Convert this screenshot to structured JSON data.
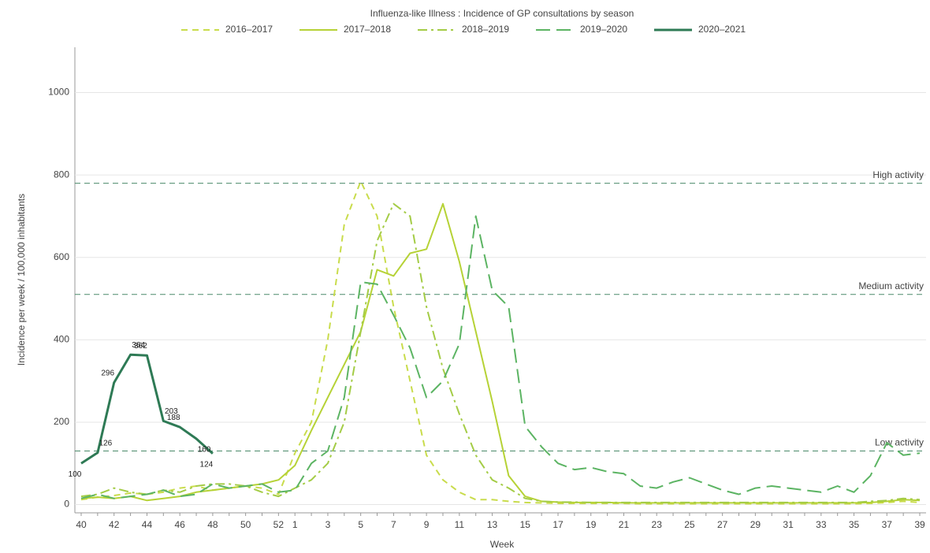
{
  "chart_data": {
    "type": "line",
    "title": "Influenza-like Illness : Incidence of GP consultations by season",
    "y_label": "Incidence per week / 100,000 inhabitants",
    "x_label": "Week",
    "categories": [
      "40",
      null,
      "42",
      null,
      "44",
      null,
      "46",
      null,
      "48",
      null,
      "50",
      null,
      "52",
      "1",
      null,
      "3",
      null,
      "5",
      null,
      "7",
      null,
      "9",
      null,
      "11",
      null,
      "13",
      null,
      "15",
      null,
      "17",
      null,
      "19",
      null,
      "21",
      null,
      "23",
      null,
      "25",
      null,
      "27",
      null,
      "29",
      null,
      "31",
      null,
      "33",
      null,
      "35",
      null,
      "37",
      null,
      "39"
    ],
    "ylim": [
      -20,
      1110
    ],
    "yticks": [
      0,
      200,
      400,
      600,
      800,
      1000
    ],
    "grid": true,
    "legend": "top",
    "thresholds": [
      {
        "label": "High activity",
        "value": 780
      },
      {
        "label": "Medium activity",
        "value": 510
      },
      {
        "label": "Low activity",
        "value": 130
      }
    ],
    "threshold_color": "#4a8a6a",
    "series": [
      {
        "name": "2016–2017",
        "color": "#c9dc4c",
        "dash": "dashed",
        "values": [
          12,
          18,
          22,
          28,
          25,
          30,
          40,
          45,
          35,
          40,
          45,
          40,
          25,
          125,
          200,
          400,
          680,
          785,
          700,
          480,
          300,
          120,
          60,
          30,
          12,
          12,
          8,
          5,
          4,
          3,
          3,
          3,
          3,
          3,
          2,
          2,
          2,
          2,
          2,
          2,
          2,
          2,
          2,
          2,
          2,
          2,
          2,
          2,
          3,
          5,
          8,
          5
        ]
      },
      {
        "name": "2017–2018",
        "color": "#b6d236",
        "dash": "solid",
        "values": [
          15,
          18,
          15,
          20,
          10,
          15,
          20,
          30,
          35,
          40,
          45,
          50,
          60,
          95,
          180,
          260,
          340,
          420,
          570,
          555,
          610,
          620,
          730,
          590,
          420,
          250,
          70,
          20,
          8,
          6,
          5,
          5,
          5,
          4,
          4,
          4,
          4,
          4,
          4,
          4,
          4,
          4,
          4,
          4,
          4,
          4,
          4,
          4,
          5,
          8,
          12,
          10
        ]
      },
      {
        "name": "2018–2019",
        "color": "#a4cc46",
        "dash": "dashdot",
        "values": [
          20,
          25,
          40,
          30,
          25,
          35,
          30,
          45,
          50,
          50,
          45,
          30,
          20,
          40,
          60,
          100,
          200,
          420,
          640,
          730,
          700,
          480,
          330,
          220,
          120,
          60,
          40,
          15,
          8,
          6,
          6,
          5,
          5,
          5,
          5,
          5,
          5,
          5,
          5,
          5,
          5,
          5,
          5,
          5,
          5,
          5,
          5,
          5,
          8,
          10,
          15,
          12
        ]
      },
      {
        "name": "2019–2020",
        "color": "#5cb463",
        "dash": "longdash",
        "values": [
          15,
          25,
          15,
          20,
          25,
          35,
          20,
          25,
          50,
          40,
          45,
          50,
          30,
          35,
          100,
          130,
          260,
          540,
          535,
          460,
          380,
          260,
          300,
          390,
          700,
          520,
          480,
          190,
          140,
          100,
          85,
          90,
          80,
          75,
          45,
          40,
          55,
          65,
          50,
          35,
          25,
          40,
          45,
          40,
          35,
          30,
          45,
          30,
          70,
          150,
          120,
          125
        ]
      },
      {
        "name": "2020–2021",
        "color": "#2e7a55",
        "dash": "solid",
        "width": 3,
        "data_labels": true,
        "values": [
          100,
          126,
          296,
          364,
          362,
          203,
          188,
          160,
          124,
          null,
          null,
          null,
          null,
          null,
          null,
          null,
          null,
          null,
          null,
          null,
          null,
          null,
          null,
          null,
          null,
          null,
          null,
          null,
          null,
          null,
          null,
          null,
          null,
          null,
          null,
          null,
          null,
          null,
          null,
          null,
          null,
          null,
          null,
          null,
          null,
          null,
          null,
          null,
          null,
          null,
          null,
          null
        ]
      }
    ]
  }
}
